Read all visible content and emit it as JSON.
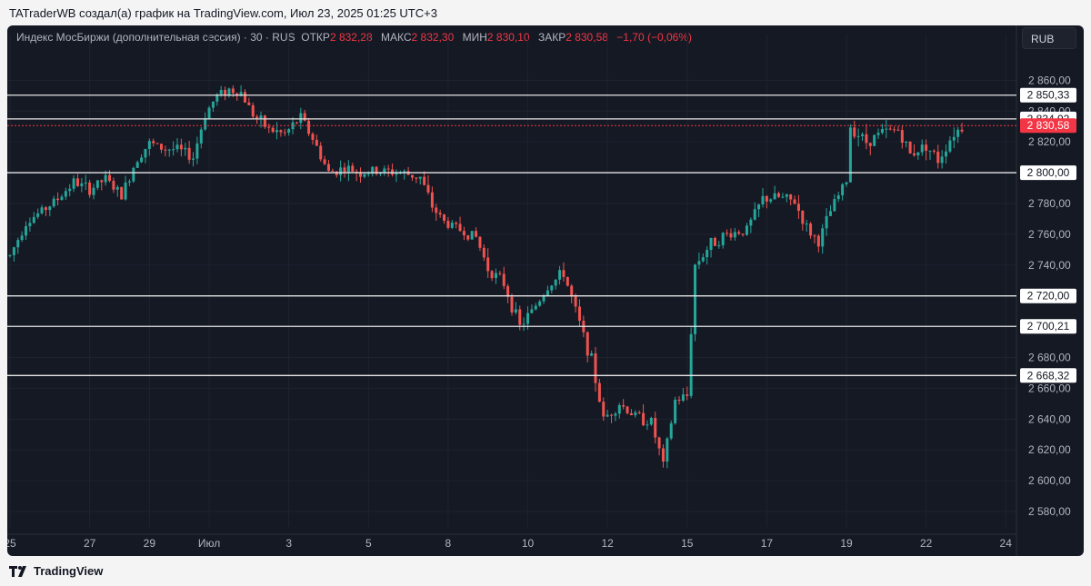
{
  "header": {
    "text": "TATraderWB создал(а) график на TradingView.com, Июл 23, 2025 01:25 UTC+3"
  },
  "footer": {
    "brand": "TradingView"
  },
  "legend": {
    "symbol": "Индекс МосБиржи (дополнительная сессия) · 30 · RUS",
    "open_label": "ОТКР",
    "open": "2 832,28",
    "high_label": "МАКС",
    "high": "2 832,30",
    "low_label": "МИН",
    "low": "2 830,10",
    "close_label": "ЗАКР",
    "close": "2 830,58",
    "change": "−1,70 (−0,06%)"
  },
  "currency": "RUB",
  "colors": {
    "up": "#26a69a",
    "down": "#ef5350",
    "background": "#151924",
    "level": "#e6e6e6",
    "price": "#f23645"
  },
  "chart_data": {
    "type": "candlestick",
    "title": "Индекс МосБиржи (дополнительная сессия)",
    "timeframe": "30",
    "y_range": [
      2570,
      2872
    ],
    "y_ticks": [
      "2 580,00",
      "2 600,00",
      "2 620,00",
      "2 640,00",
      "2 660,00",
      "2 680,00",
      "2 700,00",
      "2 720,00",
      "2 740,00",
      "2 760,00",
      "2 780,00",
      "2 800,00",
      "2 820,00",
      "2 840,00",
      "2 860,00"
    ],
    "y_tick_values": [
      2580,
      2600,
      2620,
      2640,
      2660,
      2680,
      2700,
      2720,
      2740,
      2760,
      2780,
      2800,
      2820,
      2840,
      2860
    ],
    "x_ticks": [
      "25",
      "27",
      "29",
      "Июл",
      "3",
      "5",
      "8",
      "10",
      "12",
      "15",
      "17",
      "19",
      "22",
      "24"
    ],
    "x_tick_index": [
      0,
      2,
      3.5,
      5,
      7,
      9,
      11,
      13,
      15,
      17,
      19,
      21,
      23,
      25
    ],
    "x_range_index": [
      0,
      25.2
    ],
    "levels": [
      {
        "value": 2850.33,
        "label": "2 850,33"
      },
      {
        "value": 2834.92,
        "label": "2 834,92"
      },
      {
        "value": 2800.0,
        "label": "2 800,00"
      },
      {
        "value": 2720.0,
        "label": "2 720,00"
      },
      {
        "value": 2700.21,
        "label": "2 700,21"
      },
      {
        "value": 2668.32,
        "label": "2 668,32"
      }
    ],
    "last_price": {
      "value": 2830.58,
      "label": "2 830,58"
    },
    "price_path": [
      [
        0,
        2746
      ],
      [
        0.4,
        2768
      ],
      [
        0.8,
        2775
      ],
      [
        1.2,
        2783
      ],
      [
        1.6,
        2794
      ],
      [
        2,
        2789
      ],
      [
        2.4,
        2796
      ],
      [
        2.8,
        2785
      ],
      [
        3.2,
        2810
      ],
      [
        3.5,
        2819
      ],
      [
        3.8,
        2816
      ],
      [
        4.2,
        2815
      ],
      [
        4.6,
        2810
      ],
      [
        4.9,
        2838
      ],
      [
        5.2,
        2850
      ],
      [
        5.5,
        2854
      ],
      [
        5.8,
        2852
      ],
      [
        6.1,
        2838
      ],
      [
        6.5,
        2828
      ],
      [
        6.9,
        2825
      ],
      [
        7.3,
        2836
      ],
      [
        7.6,
        2822
      ],
      [
        8,
        2800
      ],
      [
        8.4,
        2803
      ],
      [
        8.8,
        2800
      ],
      [
        9.3,
        2801
      ],
      [
        9.8,
        2800
      ],
      [
        10.3,
        2797
      ],
      [
        10.6,
        2778
      ],
      [
        10.9,
        2768
      ],
      [
        11.3,
        2763
      ],
      [
        11.7,
        2758
      ],
      [
        12,
        2738
      ],
      [
        12.4,
        2728
      ],
      [
        12.8,
        2700
      ],
      [
        13.1,
        2710
      ],
      [
        13.5,
        2726
      ],
      [
        13.9,
        2735
      ],
      [
        14.2,
        2710
      ],
      [
        14.6,
        2678
      ],
      [
        14.9,
        2640
      ],
      [
        15.3,
        2650
      ],
      [
        15.7,
        2642
      ],
      [
        16.1,
        2638
      ],
      [
        16.4,
        2610
      ],
      [
        16.7,
        2652
      ],
      [
        17,
        2655
      ],
      [
        17.2,
        2740
      ],
      [
        17.6,
        2754
      ],
      [
        18,
        2760
      ],
      [
        18.5,
        2763
      ],
      [
        18.9,
        2783
      ],
      [
        19.3,
        2784
      ],
      [
        19.7,
        2781
      ],
      [
        20,
        2764
      ],
      [
        20.3,
        2755
      ],
      [
        20.6,
        2775
      ],
      [
        21,
        2795
      ],
      [
        21.1,
        2830
      ],
      [
        21.5,
        2820
      ],
      [
        21.9,
        2826
      ],
      [
        22.3,
        2828
      ],
      [
        22.6,
        2812
      ],
      [
        23,
        2818
      ],
      [
        23.3,
        2808
      ],
      [
        23.7,
        2826
      ],
      [
        24,
        2831
      ]
    ]
  }
}
